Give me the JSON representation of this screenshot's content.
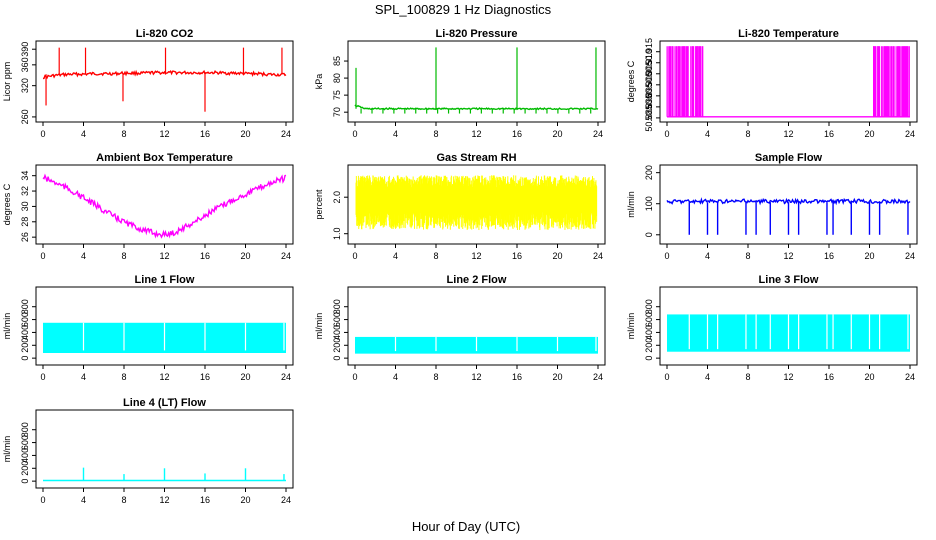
{
  "figure": {
    "title": "SPL_100829  1 Hz Diagnostics",
    "xlabel": "Hour of Day (UTC)"
  },
  "chart_data": [
    {
      "type": "line",
      "title": "Li-820 CO2",
      "ylabel": "Licor ppm",
      "color": "#ff0000",
      "xlim": [
        0,
        24
      ],
      "ylim": [
        256,
        400
      ],
      "xticks": [
        "0",
        "4",
        "8",
        "12",
        "16",
        "20",
        "24"
      ],
      "yticks": [
        "260",
        "320",
        "360",
        "390"
      ],
      "ytick_values": [
        260,
        320,
        360,
        390
      ],
      "x": [
        0,
        1,
        2,
        3,
        4,
        5,
        6,
        7,
        8,
        9,
        10,
        11,
        12,
        13,
        14,
        15,
        16,
        17,
        18,
        19,
        20,
        21,
        22,
        23,
        24
      ],
      "y": [
        336,
        339,
        341,
        342,
        342,
        343,
        343,
        343,
        344,
        344,
        344,
        345,
        345,
        345,
        345,
        345,
        345,
        345,
        344,
        344,
        343,
        343,
        342,
        341,
        341
      ],
      "spikes": [
        {
          "x": 0.3,
          "y": 282
        },
        {
          "x": 1.6,
          "y": 393
        },
        {
          "x": 4.2,
          "y": 393
        },
        {
          "x": 7.9,
          "y": 290
        },
        {
          "x": 12.1,
          "y": 393
        },
        {
          "x": 16.0,
          "y": 270
        },
        {
          "x": 19.8,
          "y": 393
        },
        {
          "x": 23.6,
          "y": 393
        }
      ]
    },
    {
      "type": "line",
      "title": "Li-820 Pressure",
      "ylabel": "kPa",
      "color": "#00bb00",
      "xlim": [
        0,
        24
      ],
      "ylim": [
        68,
        90
      ],
      "xticks": [
        "0",
        "4",
        "8",
        "12",
        "16",
        "20",
        "24"
      ],
      "yticks": [
        "70",
        "75",
        "80",
        "85"
      ],
      "ytick_values": [
        70,
        75,
        80,
        85
      ],
      "x": [
        0,
        1,
        2,
        3,
        4,
        5,
        6,
        7,
        8,
        9,
        10,
        11,
        12,
        13,
        14,
        15,
        16,
        17,
        18,
        19,
        20,
        21,
        22,
        23,
        24
      ],
      "y": [
        72,
        71,
        71,
        71,
        71,
        71,
        71,
        71,
        71,
        71,
        71,
        71,
        71,
        71,
        71,
        71,
        71,
        71,
        71,
        71,
        71,
        71,
        71,
        71,
        71
      ],
      "spikes": [
        {
          "x": 0.1,
          "y": 83
        },
        {
          "x": 8.0,
          "y": 89
        },
        {
          "x": 16.0,
          "y": 89
        },
        {
          "x": 23.8,
          "y": 89
        }
      ]
    },
    {
      "type": "area",
      "title": "Li-820 Temperature",
      "ylabel": "degrees C",
      "color": "#ff00ff",
      "xlim": [
        0,
        24
      ],
      "ylim": [
        50.8845,
        50.9185
      ],
      "xticks": [
        "0",
        "4",
        "8",
        "12",
        "16",
        "20",
        "24"
      ],
      "yticks": [
        "50.885",
        "50.890",
        "50.895",
        "50.900",
        "50.905",
        "50.910",
        "50.915"
      ],
      "ytick_values": [
        50.885,
        50.89,
        50.895,
        50.9,
        50.905,
        50.91,
        50.915
      ],
      "baseline": 50.8855,
      "high": 50.9175,
      "high_ranges": [
        [
          0.0,
          3.6
        ],
        [
          20.4,
          24.0
        ]
      ]
    },
    {
      "type": "line",
      "title": "Ambient Box Temperature",
      "ylabel": "degrees C",
      "color": "#ff00ff",
      "xlim": [
        0,
        24
      ],
      "ylim": [
        25.5,
        35
      ],
      "xticks": [
        "0",
        "4",
        "8",
        "12",
        "16",
        "20",
        "24"
      ],
      "yticks": [
        "26",
        "28",
        "30",
        "32",
        "34"
      ],
      "ytick_values": [
        26,
        28,
        30,
        32,
        34
      ],
      "x": [
        0,
        1,
        2,
        3,
        4,
        5,
        6,
        7,
        8,
        9,
        10,
        11,
        12,
        13,
        14,
        15,
        16,
        17,
        18,
        19,
        20,
        21,
        22,
        23,
        24
      ],
      "y": [
        33.8,
        33.2,
        32.6,
        31.9,
        31.1,
        30.3,
        29.5,
        28.7,
        28.0,
        27.4,
        26.9,
        26.5,
        26.3,
        26.6,
        27.3,
        28.0,
        28.8,
        29.6,
        30.3,
        31.0,
        31.6,
        32.2,
        32.8,
        33.3,
        33.7
      ]
    },
    {
      "type": "line",
      "title": "Gas Stream RH",
      "ylabel": "percent",
      "color": "#ffff00",
      "xlim": [
        0,
        24
      ],
      "ylim": [
        0.8,
        2.8
      ],
      "xticks": [
        "0",
        "4",
        "8",
        "12",
        "16",
        "20",
        "24"
      ],
      "yticks": [
        "1.0",
        "2.0"
      ],
      "ytick_values": [
        1.0,
        2.0
      ],
      "band": [
        1.1,
        2.6
      ]
    },
    {
      "type": "line",
      "title": "Sample Flow",
      "ylabel": "ml/min",
      "color": "#0000ff",
      "xlim": [
        0,
        24
      ],
      "ylim": [
        -20,
        215
      ],
      "xticks": [
        "0",
        "4",
        "8",
        "12",
        "16",
        "20",
        "24"
      ],
      "yticks": [
        "0",
        "100",
        "200"
      ],
      "ytick_values": [
        0,
        100,
        200
      ],
      "x": [
        0,
        1,
        2,
        3,
        4,
        5,
        6,
        7,
        8,
        9,
        10,
        11,
        12,
        13,
        14,
        15,
        16,
        17,
        18,
        19,
        20,
        21,
        22,
        23,
        24
      ],
      "y": [
        105,
        108,
        108,
        107,
        108,
        108,
        107,
        108,
        108,
        107,
        108,
        108,
        107,
        108,
        108,
        107,
        108,
        108,
        107,
        108,
        108,
        107,
        108,
        108,
        106
      ],
      "dips": [
        2.2,
        4.0,
        5.0,
        7.8,
        8.8,
        10.2,
        12.0,
        13.0,
        15.8,
        16.4,
        18.2,
        20.0,
        21.0,
        23.8
      ]
    },
    {
      "type": "area",
      "title": "Line 1 Flow",
      "ylabel": "ml/min",
      "color": "#00ffff",
      "xlim": [
        0,
        24
      ],
      "ylim": [
        -60,
        1060
      ],
      "xticks": [
        "0",
        "4",
        "8",
        "12",
        "16",
        "20",
        "24"
      ],
      "yticks": [
        "0",
        "200",
        "400",
        "600",
        "800"
      ],
      "ytick_values": [
        0,
        200,
        400,
        600,
        800
      ],
      "low": 80,
      "high": 550,
      "gaps": [
        4.0,
        8.0,
        12.0,
        16.0,
        20.0,
        23.8
      ]
    },
    {
      "type": "area",
      "title": "Line 2 Flow",
      "ylabel": "ml/min",
      "color": "#00ffff",
      "xlim": [
        0,
        24
      ],
      "ylim": [
        -60,
        1060
      ],
      "xticks": [
        "0",
        "4",
        "8",
        "12",
        "16",
        "20",
        "24"
      ],
      "yticks": [
        "0",
        "200",
        "400",
        "600",
        "800"
      ],
      "ytick_values": [
        0,
        200,
        400,
        600,
        800
      ],
      "low": 70,
      "high": 330,
      "gaps": [
        4.0,
        8.0,
        12.0,
        16.0,
        20.0,
        23.8
      ]
    },
    {
      "type": "area",
      "title": "Line 3 Flow",
      "ylabel": "ml/min",
      "color": "#00ffff",
      "xlim": [
        0,
        24
      ],
      "ylim": [
        -60,
        1060
      ],
      "xticks": [
        "0",
        "4",
        "8",
        "12",
        "16",
        "20",
        "24"
      ],
      "yticks": [
        "0",
        "200",
        "400",
        "600",
        "800"
      ],
      "ytick_values": [
        0,
        200,
        400,
        600,
        800
      ],
      "low": 100,
      "high": 680,
      "gaps": [
        2.2,
        4.0,
        5.0,
        7.8,
        8.8,
        10.2,
        12.0,
        13.0,
        15.8,
        16.4,
        18.2,
        20.0,
        21.0,
        23.8
      ]
    },
    {
      "type": "line",
      "title": "Line 4 (LT) Flow",
      "ylabel": "ml/min",
      "color": "#00ffff",
      "xlim": [
        0,
        24
      ],
      "ylim": [
        -60,
        1060
      ],
      "xticks": [
        "0",
        "4",
        "8",
        "12",
        "16",
        "20",
        "24"
      ],
      "yticks": [
        "0",
        "200",
        "400",
        "600",
        "800"
      ],
      "ytick_values": [
        0,
        200,
        400,
        600,
        800
      ],
      "x": [
        0,
        24
      ],
      "y": [
        10,
        10
      ],
      "spikes": [
        {
          "x": 4.0,
          "y": 210
        },
        {
          "x": 8.0,
          "y": 110
        },
        {
          "x": 12.0,
          "y": 200
        },
        {
          "x": 16.0,
          "y": 120
        },
        {
          "x": 20.0,
          "y": 200
        },
        {
          "x": 23.8,
          "y": 110
        }
      ]
    }
  ]
}
